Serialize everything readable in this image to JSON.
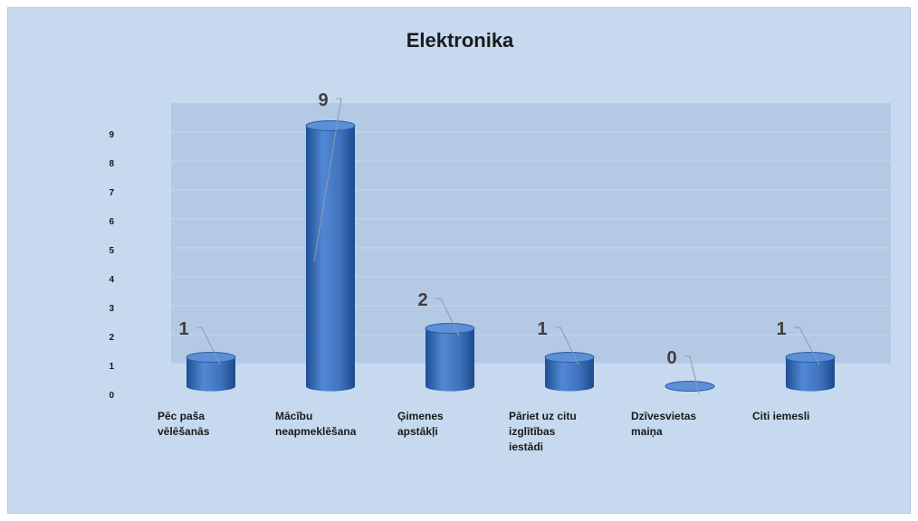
{
  "chart_data": {
    "type": "bar",
    "title": "Elektronika",
    "categories": [
      [
        "Pēc paša",
        "vēlēšanās"
      ],
      [
        "Mācību",
        "neapmeklēšana"
      ],
      [
        "Ģimenes",
        "apstākļi"
      ],
      [
        "Pāriet uz citu",
        "izglītības",
        "iestādi"
      ],
      [
        "Dzīvesvietas",
        "maiņa"
      ],
      [
        "Citi iemesli"
      ]
    ],
    "values": [
      1,
      9,
      2,
      1,
      0,
      1
    ],
    "y_ticks": [
      "0",
      "1",
      "2",
      "3",
      "4",
      "5",
      "6",
      "7",
      "8",
      "9"
    ],
    "ylim": [
      0,
      9
    ],
    "grid": true,
    "legend": "none",
    "colors": {
      "bar": "#3f74bf",
      "bar_top": "#5b8fd6",
      "background": "#c6d9ef",
      "plot_area": "#b4c9e4",
      "leader": "#8c9bb0"
    }
  }
}
